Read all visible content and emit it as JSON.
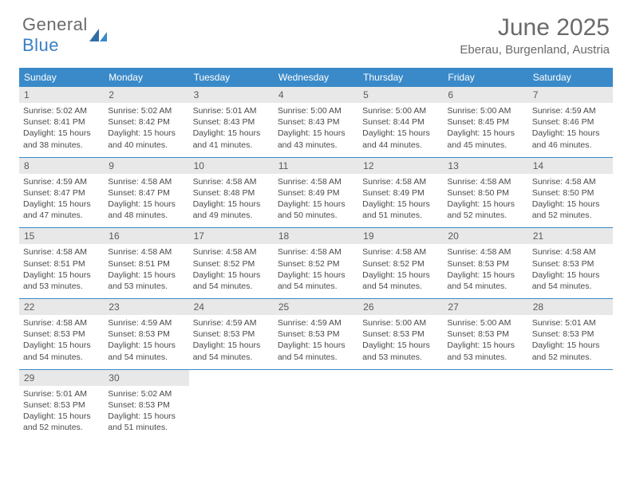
{
  "logo": {
    "word1": "General",
    "word2": "Blue"
  },
  "title": "June 2025",
  "location": "Eberau, Burgenland, Austria",
  "header_bg": "#3a8ac9",
  "daynum_bg": "#e8e8e8",
  "day_names": [
    "Sunday",
    "Monday",
    "Tuesday",
    "Wednesday",
    "Thursday",
    "Friday",
    "Saturday"
  ],
  "weeks": [
    [
      {
        "n": "1",
        "sr": "Sunrise: 5:02 AM",
        "ss": "Sunset: 8:41 PM",
        "d1": "Daylight: 15 hours",
        "d2": "and 38 minutes."
      },
      {
        "n": "2",
        "sr": "Sunrise: 5:02 AM",
        "ss": "Sunset: 8:42 PM",
        "d1": "Daylight: 15 hours",
        "d2": "and 40 minutes."
      },
      {
        "n": "3",
        "sr": "Sunrise: 5:01 AM",
        "ss": "Sunset: 8:43 PM",
        "d1": "Daylight: 15 hours",
        "d2": "and 41 minutes."
      },
      {
        "n": "4",
        "sr": "Sunrise: 5:00 AM",
        "ss": "Sunset: 8:43 PM",
        "d1": "Daylight: 15 hours",
        "d2": "and 43 minutes."
      },
      {
        "n": "5",
        "sr": "Sunrise: 5:00 AM",
        "ss": "Sunset: 8:44 PM",
        "d1": "Daylight: 15 hours",
        "d2": "and 44 minutes."
      },
      {
        "n": "6",
        "sr": "Sunrise: 5:00 AM",
        "ss": "Sunset: 8:45 PM",
        "d1": "Daylight: 15 hours",
        "d2": "and 45 minutes."
      },
      {
        "n": "7",
        "sr": "Sunrise: 4:59 AM",
        "ss": "Sunset: 8:46 PM",
        "d1": "Daylight: 15 hours",
        "d2": "and 46 minutes."
      }
    ],
    [
      {
        "n": "8",
        "sr": "Sunrise: 4:59 AM",
        "ss": "Sunset: 8:47 PM",
        "d1": "Daylight: 15 hours",
        "d2": "and 47 minutes."
      },
      {
        "n": "9",
        "sr": "Sunrise: 4:58 AM",
        "ss": "Sunset: 8:47 PM",
        "d1": "Daylight: 15 hours",
        "d2": "and 48 minutes."
      },
      {
        "n": "10",
        "sr": "Sunrise: 4:58 AM",
        "ss": "Sunset: 8:48 PM",
        "d1": "Daylight: 15 hours",
        "d2": "and 49 minutes."
      },
      {
        "n": "11",
        "sr": "Sunrise: 4:58 AM",
        "ss": "Sunset: 8:49 PM",
        "d1": "Daylight: 15 hours",
        "d2": "and 50 minutes."
      },
      {
        "n": "12",
        "sr": "Sunrise: 4:58 AM",
        "ss": "Sunset: 8:49 PM",
        "d1": "Daylight: 15 hours",
        "d2": "and 51 minutes."
      },
      {
        "n": "13",
        "sr": "Sunrise: 4:58 AM",
        "ss": "Sunset: 8:50 PM",
        "d1": "Daylight: 15 hours",
        "d2": "and 52 minutes."
      },
      {
        "n": "14",
        "sr": "Sunrise: 4:58 AM",
        "ss": "Sunset: 8:50 PM",
        "d1": "Daylight: 15 hours",
        "d2": "and 52 minutes."
      }
    ],
    [
      {
        "n": "15",
        "sr": "Sunrise: 4:58 AM",
        "ss": "Sunset: 8:51 PM",
        "d1": "Daylight: 15 hours",
        "d2": "and 53 minutes."
      },
      {
        "n": "16",
        "sr": "Sunrise: 4:58 AM",
        "ss": "Sunset: 8:51 PM",
        "d1": "Daylight: 15 hours",
        "d2": "and 53 minutes."
      },
      {
        "n": "17",
        "sr": "Sunrise: 4:58 AM",
        "ss": "Sunset: 8:52 PM",
        "d1": "Daylight: 15 hours",
        "d2": "and 54 minutes."
      },
      {
        "n": "18",
        "sr": "Sunrise: 4:58 AM",
        "ss": "Sunset: 8:52 PM",
        "d1": "Daylight: 15 hours",
        "d2": "and 54 minutes."
      },
      {
        "n": "19",
        "sr": "Sunrise: 4:58 AM",
        "ss": "Sunset: 8:52 PM",
        "d1": "Daylight: 15 hours",
        "d2": "and 54 minutes."
      },
      {
        "n": "20",
        "sr": "Sunrise: 4:58 AM",
        "ss": "Sunset: 8:53 PM",
        "d1": "Daylight: 15 hours",
        "d2": "and 54 minutes."
      },
      {
        "n": "21",
        "sr": "Sunrise: 4:58 AM",
        "ss": "Sunset: 8:53 PM",
        "d1": "Daylight: 15 hours",
        "d2": "and 54 minutes."
      }
    ],
    [
      {
        "n": "22",
        "sr": "Sunrise: 4:58 AM",
        "ss": "Sunset: 8:53 PM",
        "d1": "Daylight: 15 hours",
        "d2": "and 54 minutes."
      },
      {
        "n": "23",
        "sr": "Sunrise: 4:59 AM",
        "ss": "Sunset: 8:53 PM",
        "d1": "Daylight: 15 hours",
        "d2": "and 54 minutes."
      },
      {
        "n": "24",
        "sr": "Sunrise: 4:59 AM",
        "ss": "Sunset: 8:53 PM",
        "d1": "Daylight: 15 hours",
        "d2": "and 54 minutes."
      },
      {
        "n": "25",
        "sr": "Sunrise: 4:59 AM",
        "ss": "Sunset: 8:53 PM",
        "d1": "Daylight: 15 hours",
        "d2": "and 54 minutes."
      },
      {
        "n": "26",
        "sr": "Sunrise: 5:00 AM",
        "ss": "Sunset: 8:53 PM",
        "d1": "Daylight: 15 hours",
        "d2": "and 53 minutes."
      },
      {
        "n": "27",
        "sr": "Sunrise: 5:00 AM",
        "ss": "Sunset: 8:53 PM",
        "d1": "Daylight: 15 hours",
        "d2": "and 53 minutes."
      },
      {
        "n": "28",
        "sr": "Sunrise: 5:01 AM",
        "ss": "Sunset: 8:53 PM",
        "d1": "Daylight: 15 hours",
        "d2": "and 52 minutes."
      }
    ],
    [
      {
        "n": "29",
        "sr": "Sunrise: 5:01 AM",
        "ss": "Sunset: 8:53 PM",
        "d1": "Daylight: 15 hours",
        "d2": "and 52 minutes."
      },
      {
        "n": "30",
        "sr": "Sunrise: 5:02 AM",
        "ss": "Sunset: 8:53 PM",
        "d1": "Daylight: 15 hours",
        "d2": "and 51 minutes."
      },
      null,
      null,
      null,
      null,
      null
    ]
  ]
}
